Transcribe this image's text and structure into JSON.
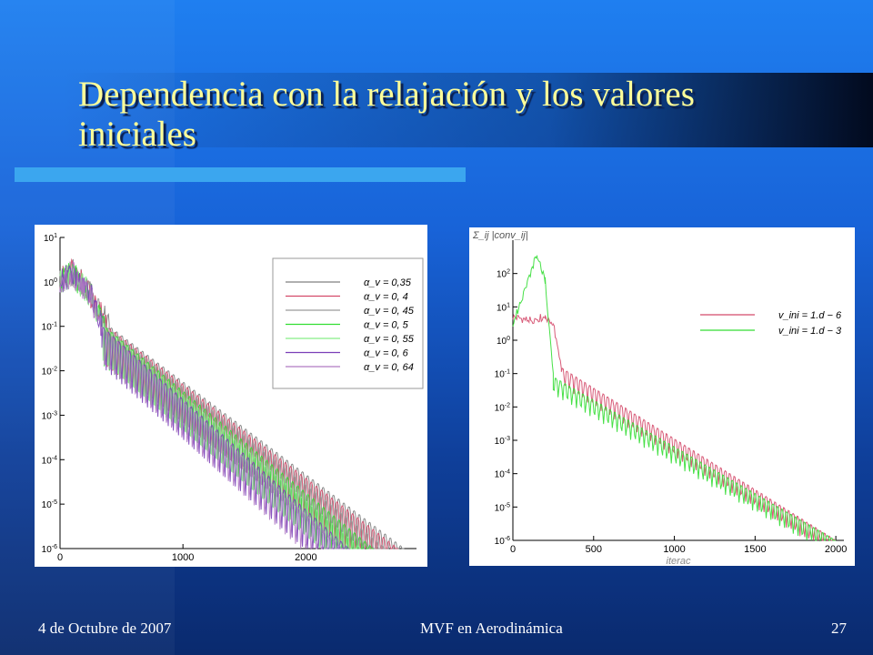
{
  "slide": {
    "title": "Dependencia con la relajación y los valores\niniciales",
    "footer_left": "4 de Octubre de 2007",
    "footer_center": "MVF en Aerodinámica",
    "footer_right": "27",
    "colors": {
      "background": "#1863d8",
      "title": "#ffff99",
      "accent_bar": "#3ba6ef",
      "footer_text": "#ffffff"
    }
  },
  "chart_data": [
    {
      "type": "line",
      "title": "",
      "xlabel": "",
      "ylabel": "",
      "xlim": [
        0,
        2900
      ],
      "ylim": [
        1e-06,
        10
      ],
      "yscale": "log",
      "grid": false,
      "legend_position": "top-right",
      "xticks": [
        "0",
        "1000",
        "2000"
      ],
      "yticks": [
        "10^1",
        "10^0",
        "10^-1",
        "10^-2",
        "10^-3",
        "10^-4",
        "10^-5",
        "10^-6"
      ],
      "series": [
        {
          "name": "α_v = 0,35",
          "color": "#808080",
          "x": [
            0,
            100,
            250,
            400,
            2800
          ],
          "y": [
            1,
            2,
            0.5,
            0.1,
            1e-06
          ]
        },
        {
          "name": "α_v = 0, 4",
          "color": "#d44a6a",
          "x": [
            0,
            100,
            250,
            380,
            2750
          ],
          "y": [
            1,
            2,
            0.5,
            0.1,
            1e-06
          ]
        },
        {
          "name": "α_v = 0, 45",
          "color": "#9a9a9a",
          "x": [
            0,
            100,
            250,
            370,
            2650
          ],
          "y": [
            1,
            1.5,
            0.5,
            0.1,
            1e-06
          ]
        },
        {
          "name": "α_v = 0, 5",
          "color": "#33dd33",
          "x": [
            0,
            100,
            250,
            360,
            2550
          ],
          "y": [
            1,
            1.5,
            0.5,
            0.1,
            1e-06
          ]
        },
        {
          "name": "α_v = 0, 55",
          "color": "#88ee88",
          "x": [
            0,
            100,
            250,
            350,
            2450
          ],
          "y": [
            1,
            1.5,
            0.5,
            0.1,
            1e-06
          ]
        },
        {
          "name": "α_v = 0, 6",
          "color": "#7a3fb8",
          "x": [
            0,
            100,
            250,
            340,
            2350
          ],
          "y": [
            1,
            1.5,
            0.5,
            0.1,
            1e-06
          ]
        },
        {
          "name": "α_v = 0, 64",
          "color": "#b07ac4",
          "x": [
            0,
            100,
            250,
            330,
            2300
          ],
          "y": [
            1,
            1.5,
            0.5,
            0.1,
            1e-06
          ]
        }
      ]
    },
    {
      "type": "line",
      "title": "",
      "ylabel": "Σ_ij |conv_ij|",
      "xlabel": "iterac",
      "xlim": [
        0,
        2050
      ],
      "ylim": [
        1e-06,
        1000
      ],
      "yscale": "log",
      "grid": false,
      "legend_position": "top-right",
      "xticks": [
        "0",
        "500",
        "1000",
        "1500",
        "2000"
      ],
      "yticks": [
        "10^2",
        "10^1",
        "10^0",
        "10^-1",
        "10^-2",
        "10^-3",
        "10^-4",
        "10^-5",
        "10^-6"
      ],
      "series": [
        {
          "name": "v_ini = 1.d − 6",
          "color": "#d44a6a",
          "x": [
            0,
            100,
            200,
            250,
            300,
            2000
          ],
          "y": [
            5,
            4,
            5,
            3,
            0.15,
            1e-06
          ]
        },
        {
          "name": "v_ini = 1.d − 3",
          "color": "#33dd33",
          "x": [
            0,
            60,
            150,
            200,
            250,
            2000
          ],
          "y": [
            3,
            20,
            400,
            60,
            0.08,
            1e-06
          ]
        }
      ]
    }
  ]
}
